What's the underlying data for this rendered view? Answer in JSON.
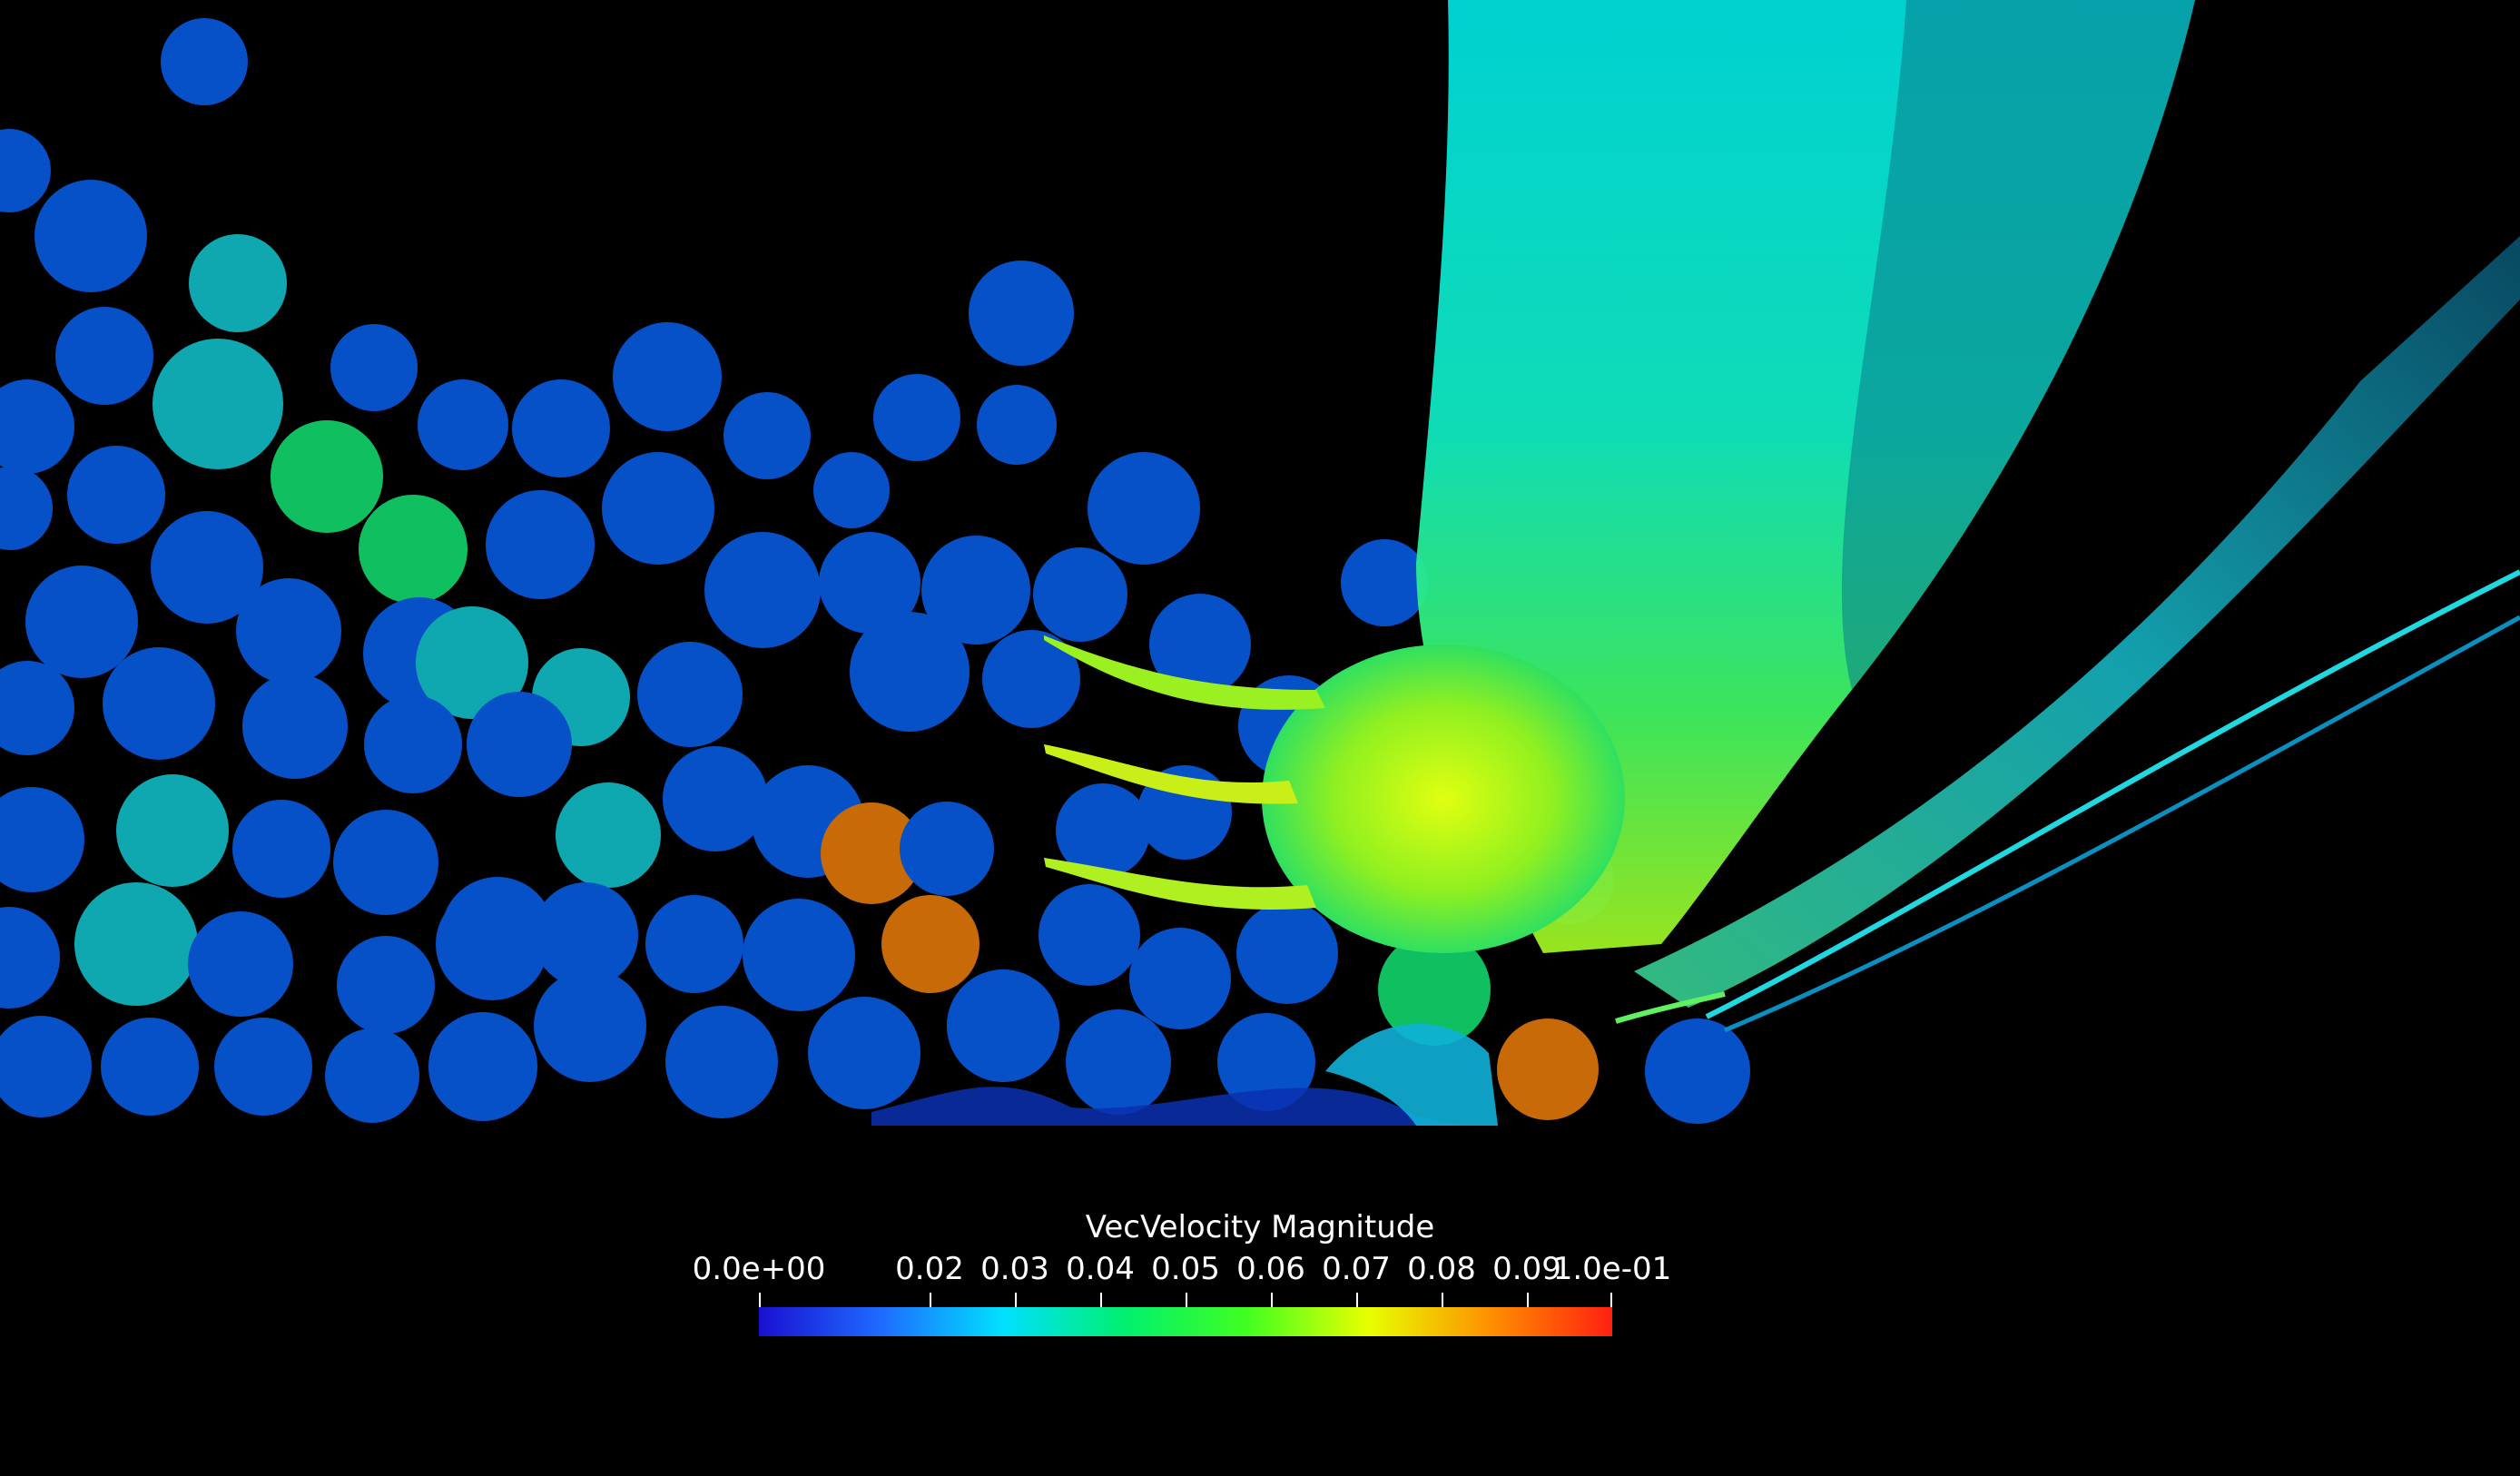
{
  "colorbar": {
    "title": "VecVelocity Magnitude",
    "min_label": "0.0e+00",
    "max_label": "1.0e-01",
    "tick_labels": [
      "0.02",
      "0.03",
      "0.04",
      "0.05",
      "0.06",
      "0.07",
      "0.08",
      "0.09"
    ],
    "colors": [
      "#1a10d0",
      "#1e6bff",
      "#00e0ff",
      "#00f070",
      "#40ff20",
      "#e8ff00",
      "#ff9000",
      "#ff2010"
    ]
  },
  "scene": {
    "background": "#000000",
    "particle_blue": "#0650c8",
    "particle_cyan": "#10a8b0",
    "particle_green": "#10c060",
    "particle_orange": "#c86a08"
  }
}
